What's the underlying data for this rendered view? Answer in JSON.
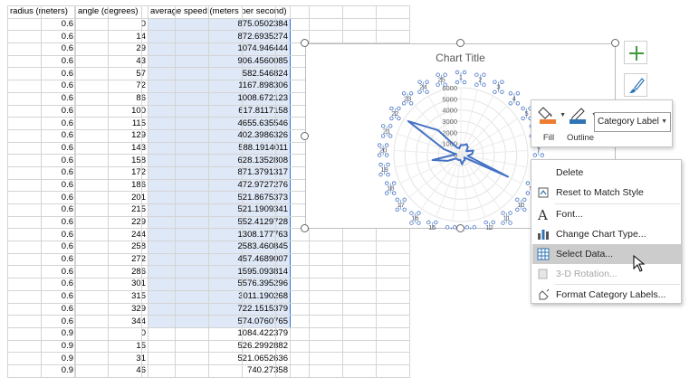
{
  "sheet": {
    "headers": [
      "radius (meters)",
      "angle (degrees)",
      "average speed (meters per second)"
    ],
    "rows": [
      [
        "0.6",
        "0",
        "875.0502384"
      ],
      [
        "0.6",
        "14",
        "872.6935274"
      ],
      [
        "0.6",
        "29",
        "1074.946444"
      ],
      [
        "0.6",
        "43",
        "906.4560085"
      ],
      [
        "0.6",
        "57",
        "582.546824"
      ],
      [
        "0.6",
        "72",
        "1167.898306"
      ],
      [
        "0.6",
        "86",
        "1008.672123"
      ],
      [
        "0.6",
        "100",
        "617.8117158"
      ],
      [
        "0.6",
        "115",
        "4655.635546"
      ],
      [
        "0.6",
        "129",
        "402.3986326"
      ],
      [
        "0.6",
        "143",
        "588.1914011"
      ],
      [
        "0.6",
        "158",
        "628.1352808"
      ],
      [
        "0.6",
        "172",
        "871.3791317"
      ],
      [
        "0.6",
        "186",
        "472.9727276"
      ],
      [
        "0.6",
        "201",
        "521.8675373"
      ],
      [
        "0.6",
        "215",
        "521.1909341"
      ],
      [
        "0.6",
        "229",
        "552.4129728"
      ],
      [
        "0.6",
        "244",
        "1308.177763"
      ],
      [
        "0.6",
        "258",
        "2583.460845"
      ],
      [
        "0.6",
        "272",
        "457.4689007"
      ],
      [
        "0.6",
        "286",
        "1595.093814"
      ],
      [
        "0.6",
        "301",
        "5576.395296"
      ],
      [
        "0.6",
        "315",
        "3011.190268"
      ],
      [
        "0.6",
        "329",
        "722.1515379"
      ],
      [
        "0.6",
        "344",
        "574.0760765"
      ],
      [
        "0.9",
        "0",
        "1084.422379"
      ],
      [
        "0.9",
        "15",
        "526.2992882"
      ],
      [
        "0.9",
        "31",
        "521.0652636"
      ],
      [
        "0.9",
        "46",
        "740.27358"
      ]
    ]
  },
  "chart": {
    "title": "Chart Title",
    "radial_ticks": [
      "0",
      "1000",
      "2000",
      "3000",
      "4000",
      "5000",
      "6000"
    ],
    "category_labels": [
      "1",
      "2",
      "3",
      "4",
      "5",
      "6",
      "7",
      "8",
      "9",
      "10",
      "11",
      "12",
      "13",
      "14",
      "15",
      "16",
      "17",
      "18",
      "19",
      "20",
      "21",
      "22",
      "23",
      "24",
      "25"
    ],
    "series_color": "#4472c4"
  },
  "chart_data": {
    "type": "radar",
    "title": "Chart Title",
    "categories": [
      "1",
      "2",
      "3",
      "4",
      "5",
      "6",
      "7",
      "8",
      "9",
      "10",
      "11",
      "12",
      "13",
      "14",
      "15",
      "16",
      "17",
      "18",
      "19",
      "20",
      "21",
      "22",
      "23",
      "24",
      "25"
    ],
    "values": [
      875.05,
      872.69,
      1074.95,
      906.46,
      582.55,
      1167.9,
      1008.67,
      617.81,
      4655.64,
      402.4,
      588.19,
      628.14,
      871.38,
      472.97,
      521.87,
      521.19,
      552.41,
      1308.18,
      2583.46,
      457.47,
      1595.09,
      5576.4,
      3011.19,
      722.15,
      574.08
    ],
    "rlim": [
      0,
      6000
    ],
    "grid": true
  },
  "mini_toolbar": {
    "fill_label": "Fill",
    "outline_label": "Outline",
    "element_select": "Category Label",
    "fill_color": "#ed7d31",
    "outline_color": "#2e75b6"
  },
  "context_menu": {
    "items": [
      {
        "label": "Delete",
        "icon": "delete-icon"
      },
      {
        "label": "Reset to Match Style",
        "icon": "reset-style-icon"
      },
      {
        "label": "Font...",
        "icon": "font-icon"
      },
      {
        "label": "Change Chart Type...",
        "icon": "chart-type-icon"
      },
      {
        "label": "Select Data...",
        "icon": "select-data-icon"
      },
      {
        "label": "3-D Rotation...",
        "icon": "rotation-icon"
      },
      {
        "label": "Format Category Labels...",
        "icon": "format-icon"
      }
    ]
  }
}
